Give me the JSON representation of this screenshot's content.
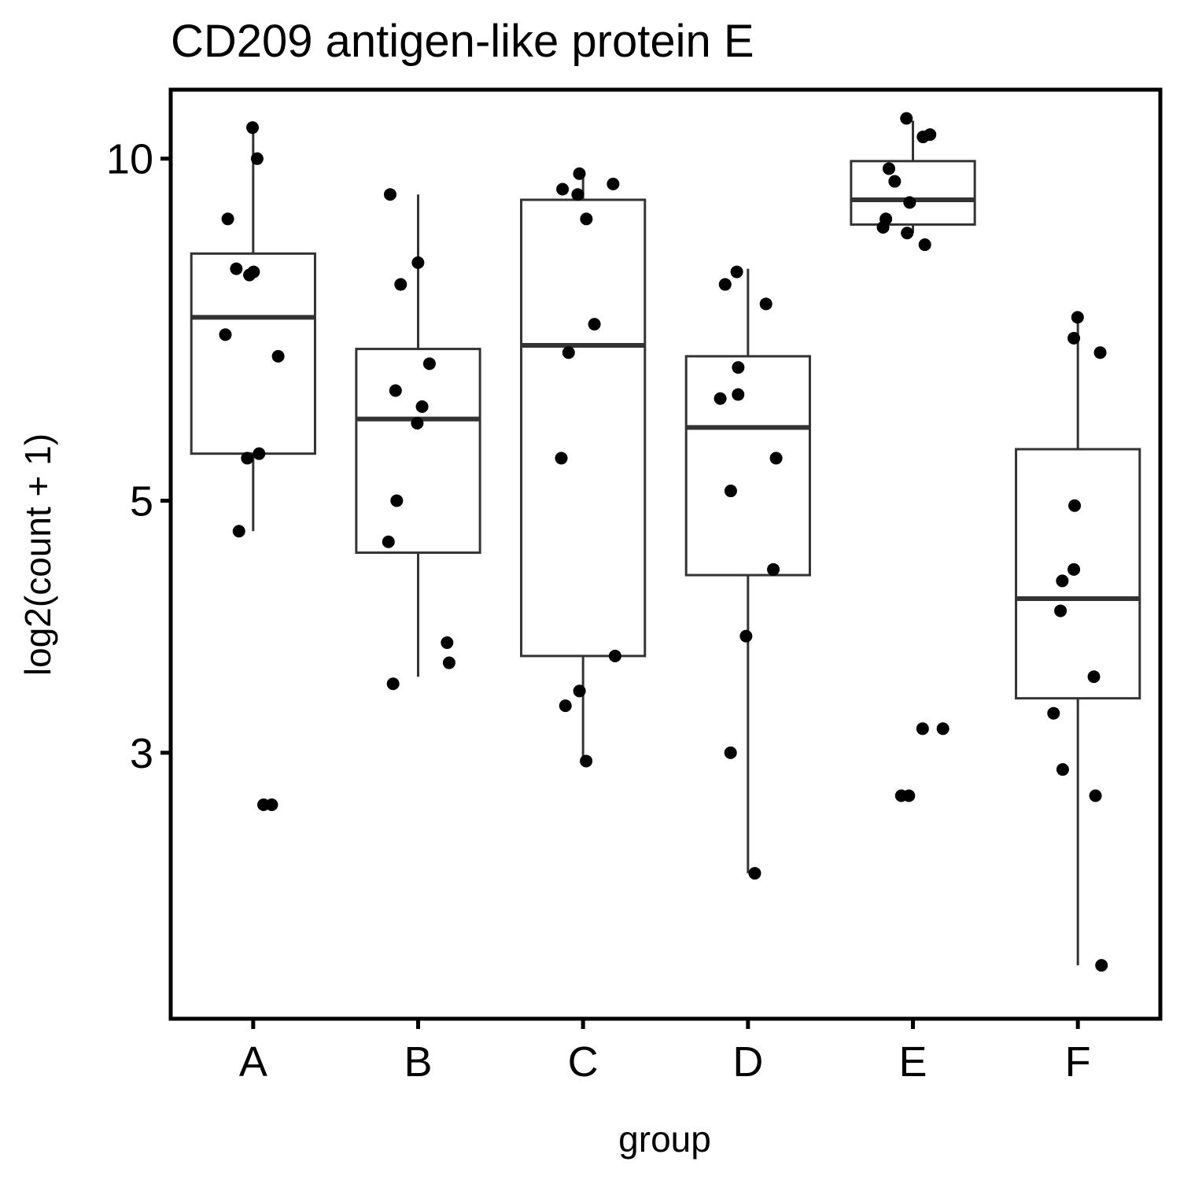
{
  "chart_data": {
    "type": "box",
    "title": "CD209 antigen-like protein E",
    "xlabel": "group",
    "ylabel": "log2(count + 1)",
    "y_scale": "log",
    "ylim": [
      1.75,
      11.5
    ],
    "y_ticks": [
      3,
      5,
      10
    ],
    "y_tick_labels": [
      "3",
      "5",
      "10"
    ],
    "categories": [
      "A",
      "B",
      "C",
      "D",
      "E",
      "F"
    ],
    "grid": false,
    "legend": "none",
    "colors": {
      "box_stroke": "#333333",
      "point": "#000000",
      "frame": "#000000"
    },
    "boxes": [
      {
        "category": "A",
        "whisker_low": 4.7,
        "q1": 5.5,
        "median": 7.25,
        "q3": 8.25,
        "whisker_high": 10.65
      },
      {
        "category": "B",
        "whisker_low": 3.5,
        "q1": 4.5,
        "median": 5.9,
        "q3": 6.8,
        "whisker_high": 9.3
      },
      {
        "category": "C",
        "whisker_low": 2.95,
        "q1": 3.65,
        "median": 6.85,
        "q3": 9.2,
        "whisker_high": 9.7
      },
      {
        "category": "D",
        "whisker_low": 2.35,
        "q1": 4.3,
        "median": 5.8,
        "q3": 6.7,
        "whisker_high": 8.0
      },
      {
        "category": "E",
        "whisker_low": 8.6,
        "q1": 8.75,
        "median": 9.2,
        "q3": 9.95,
        "whisker_high": 10.8
      },
      {
        "category": "F",
        "whisker_low": 1.95,
        "q1": 3.35,
        "median": 4.1,
        "q3": 5.55,
        "whisker_high": 7.25
      }
    ],
    "points": [
      {
        "category": "A",
        "values": [
          10.65,
          10.0,
          8.85,
          8.0,
          7.9,
          7.95,
          7.0,
          6.7,
          5.5,
          5.45,
          4.7,
          2.7,
          2.7
        ]
      },
      {
        "category": "B",
        "values": [
          9.3,
          8.1,
          7.75,
          6.6,
          6.25,
          6.05,
          5.85,
          5.0,
          4.6,
          3.75,
          3.6,
          3.45
        ]
      },
      {
        "category": "C",
        "values": [
          9.7,
          9.5,
          9.4,
          9.3,
          8.85,
          7.15,
          6.75,
          5.45,
          3.65,
          3.4,
          3.3,
          2.95
        ]
      },
      {
        "category": "D",
        "values": [
          7.95,
          7.75,
          7.45,
          6.55,
          6.2,
          6.15,
          5.45,
          5.1,
          4.35,
          3.8,
          3.0,
          2.35
        ]
      },
      {
        "category": "E",
        "values": [
          10.85,
          10.5,
          10.45,
          9.8,
          9.55,
          9.15,
          8.85,
          8.7,
          8.6,
          8.4,
          3.15,
          3.15,
          2.75,
          2.75
        ]
      },
      {
        "category": "F",
        "values": [
          7.25,
          6.95,
          6.75,
          4.95,
          4.35,
          4.25,
          4.0,
          3.5,
          3.25,
          2.9,
          2.75,
          1.95
        ]
      }
    ]
  }
}
